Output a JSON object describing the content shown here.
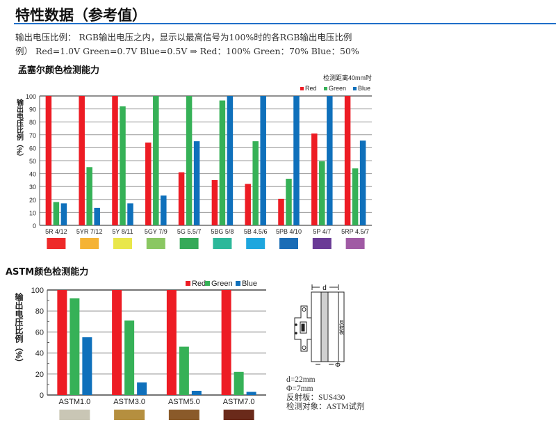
{
  "header": {
    "title": "特性数据（参考值）"
  },
  "description": {
    "line1": "输出电压比例： RGB输出电压之内，显示以最高信号为100%时的各RGB输出电压比例",
    "line2": "例） Red=1.0V Green=0.7V Blue=0.5V ⇒ Red：100% Green：70% Blue：50%"
  },
  "colors": {
    "red": "#ed1c24",
    "green": "#36b157",
    "blue": "#0f70bb",
    "rule": "#1f6fc9"
  },
  "chart_data": [
    {
      "type": "bar",
      "title": "孟塞尔颜色检测能力",
      "note": "检测距离40mm时",
      "ylabel": "输出电压比例（%）",
      "ylim": [
        0,
        100
      ],
      "yticks": [
        0,
        10,
        20,
        30,
        40,
        50,
        60,
        70,
        80,
        90,
        100
      ],
      "grid": true,
      "legend_position": "top-right",
      "categories": [
        "5R 4/12",
        "5YR 7/12",
        "5Y 8/11",
        "5GY 7/9",
        "5G 5.5/7",
        "5BG 5/8",
        "5B 4.5/6",
        "5PB 4/10",
        "5P 4/7",
        "5RP 4.5/7"
      ],
      "swatches": [
        "#ee2a29",
        "#f5b335",
        "#e9e74a",
        "#8ac762",
        "#36aa59",
        "#2cb89a",
        "#1ea6de",
        "#1b6db6",
        "#6a3b96",
        "#a05aa4"
      ],
      "series": [
        {
          "name": "Red",
          "color": "#ed1c24",
          "values": [
            100,
            100,
            100,
            64,
            41,
            35,
            32,
            20.5,
            71,
            100
          ]
        },
        {
          "name": "Green",
          "color": "#36b157",
          "values": [
            18,
            45,
            92,
            100,
            100,
            96.5,
            65,
            36,
            49.5,
            44
          ]
        },
        {
          "name": "Blue",
          "color": "#0f70bb",
          "values": [
            17,
            13.5,
            17,
            23,
            65,
            100,
            100,
            100,
            100,
            65.5
          ]
        }
      ]
    },
    {
      "type": "bar",
      "title": "ASTM颜色检测能力",
      "ylabel": "输出电压比例（%）",
      "ylim": [
        0,
        100
      ],
      "yticks": [
        0,
        20,
        40,
        60,
        80,
        100
      ],
      "grid": true,
      "legend_position": "top-right",
      "categories": [
        "ASTM1.0",
        "ASTM3.0",
        "ASTM5.0",
        "ASTM7.0"
      ],
      "swatches": [
        "#c9c6b5",
        "#b58f3f",
        "#8a5a2a",
        "#6a2a1a"
      ],
      "series": [
        {
          "name": "Red",
          "color": "#ed1c24",
          "values": [
            100,
            100,
            100,
            100
          ]
        },
        {
          "name": "Green",
          "color": "#36b157",
          "values": [
            92,
            71,
            46,
            22
          ]
        },
        {
          "name": "Blue",
          "color": "#0f70bb",
          "values": [
            55,
            12,
            4,
            3
          ]
        }
      ]
    }
  ],
  "diagram": {
    "d_label": "d",
    "phi_label": "Φ",
    "reflector_label": "反射板"
  },
  "specs": [
    "d=22mm",
    "Φ=7mm",
    "反射板：SUS430",
    "检测对象：ASTM试剂"
  ]
}
